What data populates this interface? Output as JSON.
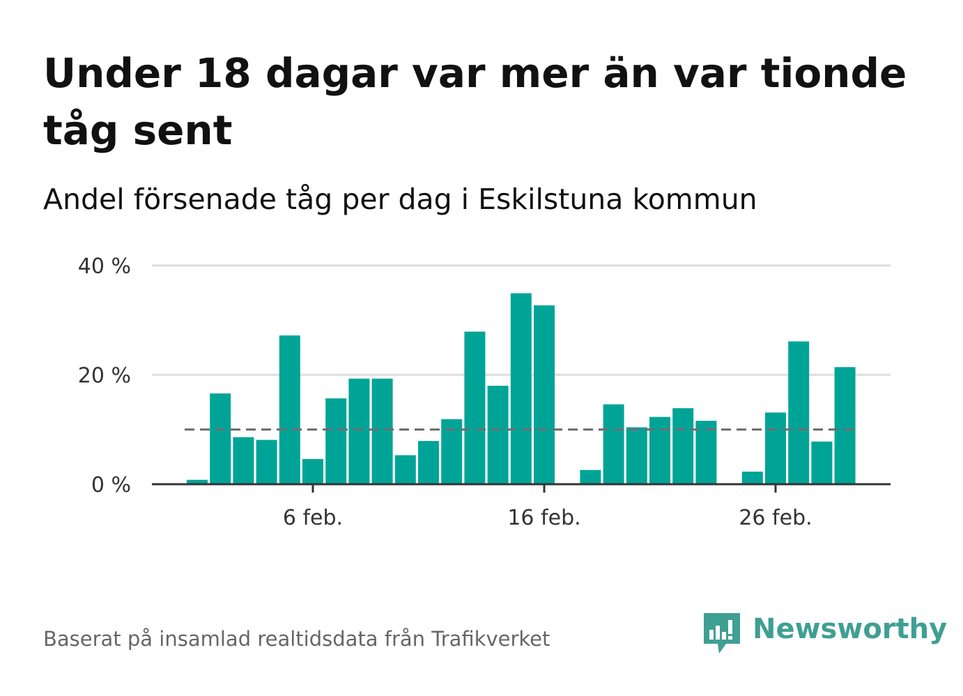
{
  "title": "Under 18 dagar var mer än var tionde tåg sent",
  "subtitle": "Andel försenade tåg per dag i Eskilstuna kommun",
  "source": "Baserat på insamlad realtidsdata från Trafikverket",
  "brand": {
    "name": "Newsworthy",
    "color": "#3f9f93"
  },
  "colors": {
    "bar": "#00a497",
    "reference": "#6e6e6e",
    "grid": "#dddddd",
    "axis": "#333333"
  },
  "chart_data": {
    "type": "bar",
    "x": [
      "2024-02-01",
      "2024-02-02",
      "2024-02-03",
      "2024-02-04",
      "2024-02-05",
      "2024-02-06",
      "2024-02-07",
      "2024-02-08",
      "2024-02-09",
      "2024-02-10",
      "2024-02-11",
      "2024-02-12",
      "2024-02-13",
      "2024-02-14",
      "2024-02-15",
      "2024-02-16",
      "2024-02-17",
      "2024-02-18",
      "2024-02-19",
      "2024-02-20",
      "2024-02-21",
      "2024-02-22",
      "2024-02-23",
      "2024-02-24",
      "2024-02-25",
      "2024-02-26",
      "2024-02-27",
      "2024-02-28",
      "2024-02-29"
    ],
    "values": [
      0.8,
      16.6,
      8.6,
      8.1,
      27.2,
      4.6,
      15.7,
      19.3,
      19.3,
      5.3,
      7.9,
      11.9,
      27.9,
      18.0,
      34.9,
      32.7,
      null,
      2.6,
      14.6,
      10.4,
      12.3,
      13.9,
      11.6,
      null,
      2.3,
      13.1,
      26.1,
      7.8,
      21.4
    ],
    "reference_line": 10,
    "ylim": [
      0,
      40
    ],
    "yticks": [
      0,
      20,
      40
    ],
    "ytick_labels": [
      "0 %",
      "20 %",
      "40 %"
    ],
    "xticks": [
      "2024-02-06",
      "2024-02-16",
      "2024-02-26"
    ],
    "xtick_labels": [
      "6 feb.",
      "16 feb.",
      "26 feb."
    ],
    "grid": true
  }
}
